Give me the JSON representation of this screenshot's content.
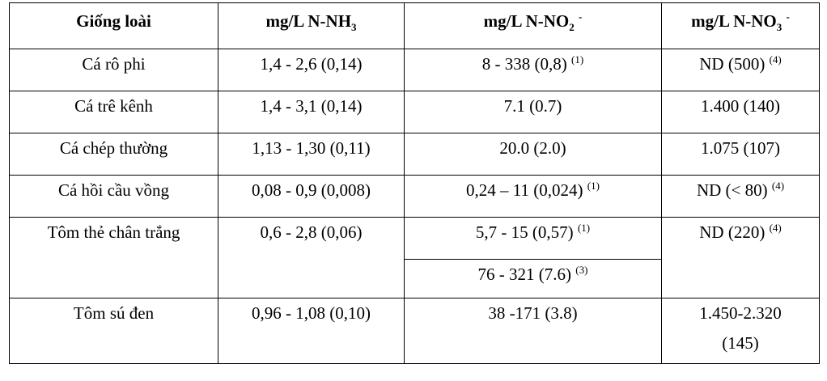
{
  "header": {
    "c1": "Giống loài",
    "c2_main": "mg/L N-NH",
    "c2_sub": "3",
    "c3_main": "mg/L N-NO",
    "c3_sub": "2",
    "c3_sup": "-",
    "c4_main": "mg/L N-NO",
    "c4_sub": "3",
    "c4_sup": "-"
  },
  "rows": [
    {
      "species": "Cá rô phi",
      "nh3": "1,4 - 2,6 (0,14)",
      "no2": "8 - 338 (0,8)",
      "no2_note": "(1)",
      "no3": "ND (500)",
      "no3_note": "(4)"
    },
    {
      "species": "Cá trê kênh",
      "nh3": "1,4 - 3,1 (0,14)",
      "no2": "7.1 (0.7)",
      "no3": "1.400 (140)"
    },
    {
      "species": "Cá chép thường",
      "nh3": "1,13 - 1,30 (0,11)",
      "no2": "20.0 (2.0)",
      "no3": "1.075 (107)"
    },
    {
      "species": "Cá hồi cầu vồng",
      "nh3": "0,08 - 0,9 (0,008)",
      "no2": "0,24 – 11 (0,024)",
      "no2_note": "(1)",
      "no3": "ND (< 80)",
      "no3_note": "(4)"
    },
    {
      "species": "Tôm thẻ chân trắng",
      "nh3": "0,6 - 2,8 (0,06)",
      "no2": "5,7 - 15 (0,57)",
      "no2_note": "(1)",
      "no2b": "76 - 321 (7.6)",
      "no2b_note": "(3)",
      "no3": "ND (220)",
      "no3_note": "(4)"
    },
    {
      "species": "Tôm sú đen",
      "nh3": "0,96 - 1,08 (0,10)",
      "no2": "38 -171 (3.8)",
      "no3_line1": "1.450-2.320",
      "no3_line2": "(145)"
    }
  ]
}
